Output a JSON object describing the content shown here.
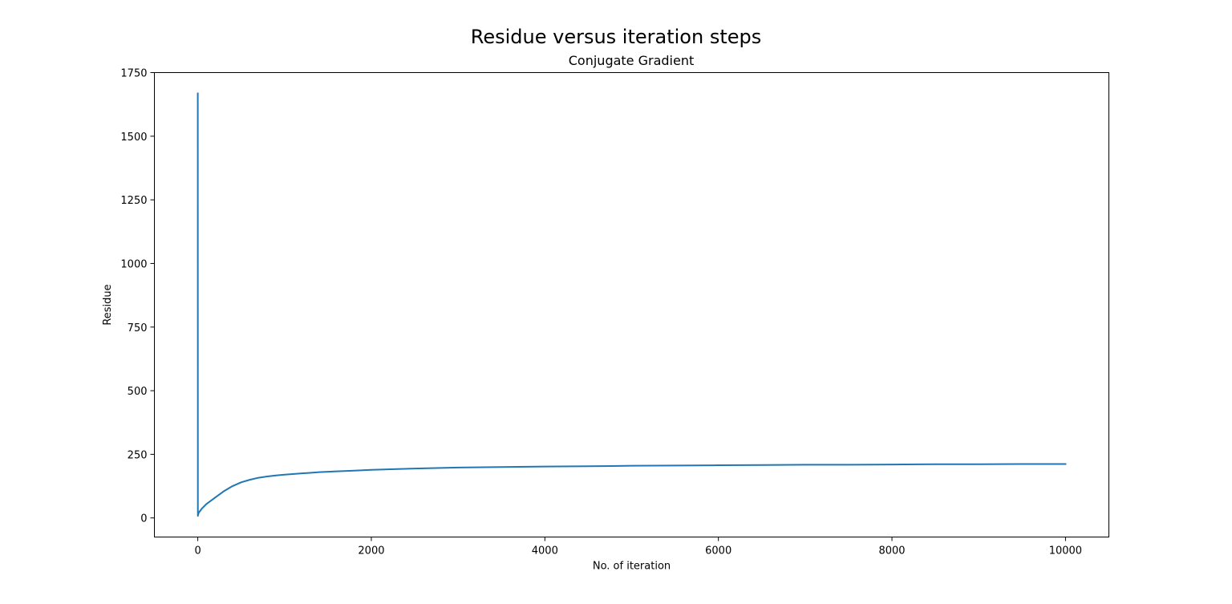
{
  "figure": {
    "suptitle": "Residue versus iteration steps"
  },
  "chart_data": {
    "type": "line",
    "title": "Conjugate Gradient",
    "xlabel": "No. of iteration",
    "ylabel": "Residue",
    "xlim": [
      -500,
      10500
    ],
    "ylim": [
      -75,
      1750
    ],
    "xticks": [
      0,
      2000,
      4000,
      6000,
      8000,
      10000
    ],
    "xtick_labels": [
      "0",
      "2000",
      "4000",
      "6000",
      "8000",
      "10000"
    ],
    "yticks": [
      0,
      250,
      500,
      750,
      1000,
      1250,
      1500,
      1750
    ],
    "ytick_labels": [
      "0",
      "250",
      "500",
      "750",
      "1000",
      "1250",
      "1500",
      "1750"
    ],
    "grid": false,
    "series": [
      {
        "name": "residue",
        "color": "#1f77b4",
        "x": [
          0,
          1,
          2,
          10,
          50,
          100,
          200,
          300,
          400,
          500,
          600,
          700,
          800,
          900,
          1000,
          1200,
          1400,
          1600,
          1800,
          2000,
          2300,
          2600,
          3000,
          3500,
          4000,
          4500,
          5000,
          5500,
          6000,
          6500,
          7000,
          7500,
          8000,
          8500,
          9000,
          9500,
          10000
        ],
        "y": [
          1668,
          8,
          10,
          20,
          38,
          55,
          80,
          105,
          125,
          140,
          150,
          158,
          163,
          167,
          170,
          175,
          180,
          183,
          186,
          189,
          192,
          195,
          198,
          200,
          202,
          203,
          205,
          206,
          207,
          208,
          209,
          209,
          210,
          211,
          211,
          212,
          212
        ]
      }
    ]
  }
}
